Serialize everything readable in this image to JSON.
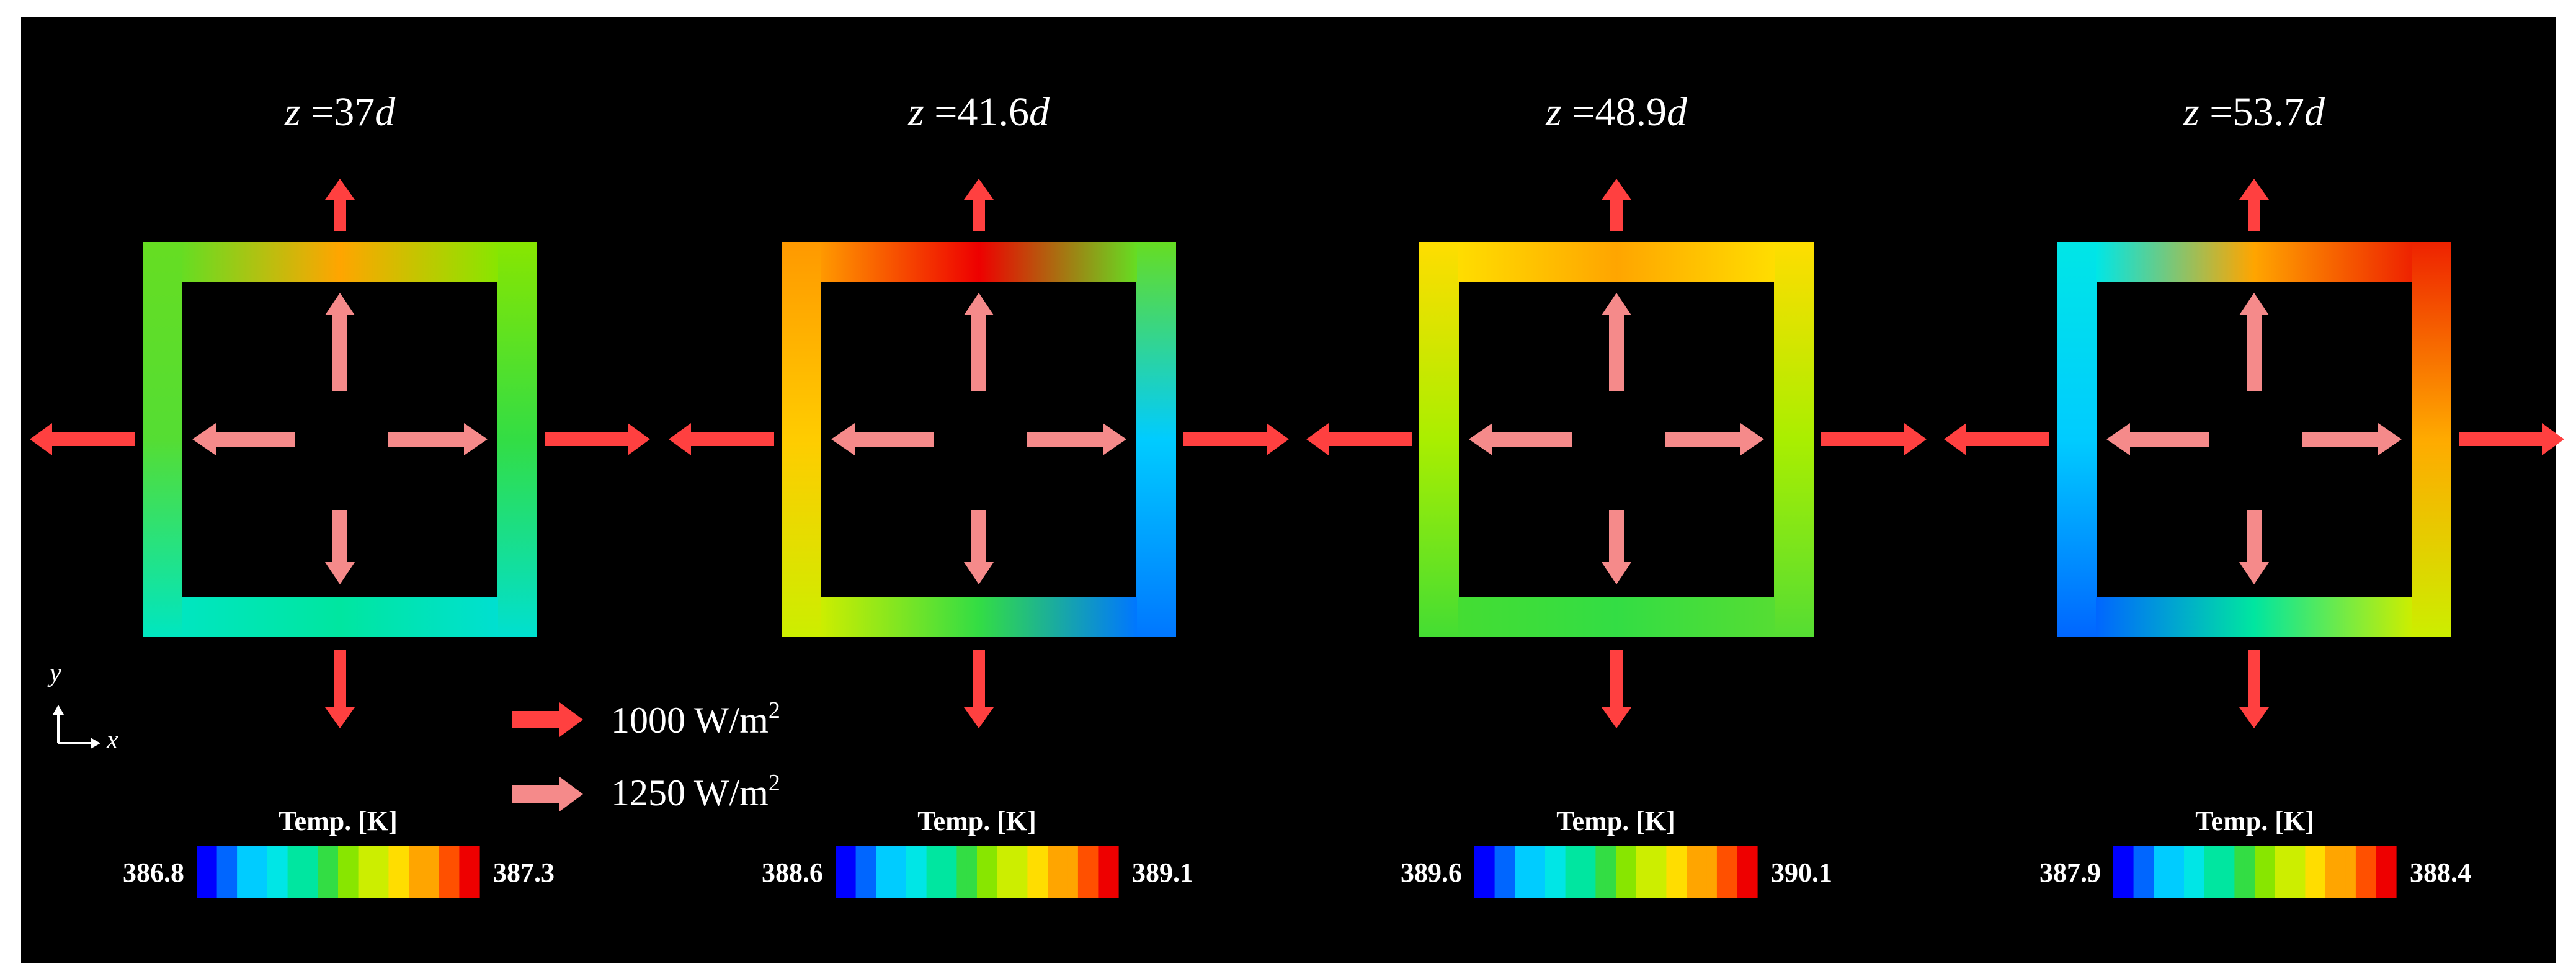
{
  "colors": {
    "background": "#000000",
    "outer_frame": "#ffffff",
    "flux_1000": "#ff4040",
    "flux_1250": "#f58a8a",
    "colormap": [
      "#0000ff",
      "#0066ff",
      "#00ccff",
      "#00e6e6",
      "#00e6a0",
      "#33dd44",
      "#88e600",
      "#ccee00",
      "#ffdd00",
      "#ffa500",
      "#ff5000",
      "#ee0000"
    ]
  },
  "legend": {
    "items": [
      {
        "label": "1000 W/m",
        "sup": "2",
        "color_key": "flux_1000"
      },
      {
        "label": "1250 W/m",
        "sup": "2",
        "color_key": "flux_1250"
      }
    ]
  },
  "axes_indicator": {
    "y_label": "y",
    "x_label": "x"
  },
  "panels": [
    {
      "title_var": "z",
      "title_eq": " =",
      "title_num": "37",
      "title_unit": "d",
      "colorbar": {
        "title": "Temp. [K]",
        "min_label": "386.8",
        "max_label": "387.3"
      },
      "frame_colors": {
        "top_left": "#66dd22",
        "top_center": "#ffa500",
        "top_right": "#88e600",
        "mid_left": "#55dd33",
        "mid_right": "#33dd44",
        "bottom_left": "#00e6c0",
        "bottom_center": "#00e6a0",
        "bottom_right": "#00e0d0"
      },
      "flux_arrows": {
        "outer_up": "1000",
        "outer_down": "1000",
        "outer_left": "1000",
        "outer_right": "1000",
        "inner_up": "1250",
        "inner_down": "1250",
        "inner_left": "1250",
        "inner_right": "1250"
      }
    },
    {
      "title_var": "z",
      "title_eq": " =",
      "title_num": "41.6",
      "title_unit": "d",
      "colorbar": {
        "title": "Temp. [K]",
        "min_label": "388.6",
        "max_label": "389.1"
      },
      "frame_colors": {
        "top_left": "#ff9900",
        "top_center": "#ee0000",
        "top_right": "#66dd22",
        "mid_left": "#ffcc00",
        "mid_right": "#00ccff",
        "bottom_left": "#ccee00",
        "bottom_center": "#33dd44",
        "bottom_right": "#0077ff"
      },
      "flux_arrows": {
        "outer_up": "1000",
        "outer_down": "1000",
        "outer_left": "1000",
        "outer_right": "1000",
        "inner_up": "1250",
        "inner_down": "1250",
        "inner_left": "1250",
        "inner_right": "1250"
      }
    },
    {
      "title_var": "z",
      "title_eq": " =",
      "title_num": "48.9",
      "title_unit": "d",
      "colorbar": {
        "title": "Temp. [K]",
        "min_label": "389.6",
        "max_label": "390.1"
      },
      "frame_colors": {
        "top_left": "#ffdd00",
        "top_center": "#ffa500",
        "top_right": "#ffdd00",
        "mid_left": "#aaee00",
        "mid_right": "#aaee00",
        "bottom_left": "#44dd33",
        "bottom_center": "#33dd44",
        "bottom_right": "#55dd33"
      },
      "flux_arrows": {
        "outer_up": "1000",
        "outer_down": "1000",
        "outer_left": "1000",
        "outer_right": "1000",
        "inner_up": "1250",
        "inner_down": "1250",
        "inner_left": "1250",
        "inner_right": "1250"
      }
    },
    {
      "title_var": "z",
      "title_eq": " =",
      "title_num": "53.7",
      "title_unit": "d",
      "colorbar": {
        "title": "Temp. [K]",
        "min_label": "387.9",
        "max_label": "388.4"
      },
      "frame_colors": {
        "top_left": "#00e6e6",
        "top_center": "#ffa500",
        "top_right": "#ee2200",
        "mid_left": "#00ccff",
        "mid_right": "#ffaa00",
        "bottom_left": "#0066ff",
        "bottom_center": "#00e6a0",
        "bottom_right": "#ccee00"
      },
      "flux_arrows": {
        "outer_up": "1000",
        "outer_down": "1000",
        "outer_left": "1000",
        "outer_right": "1000",
        "inner_up": "1250",
        "inner_down": "1250",
        "inner_left": "1250",
        "inner_right": "1250"
      }
    }
  ]
}
